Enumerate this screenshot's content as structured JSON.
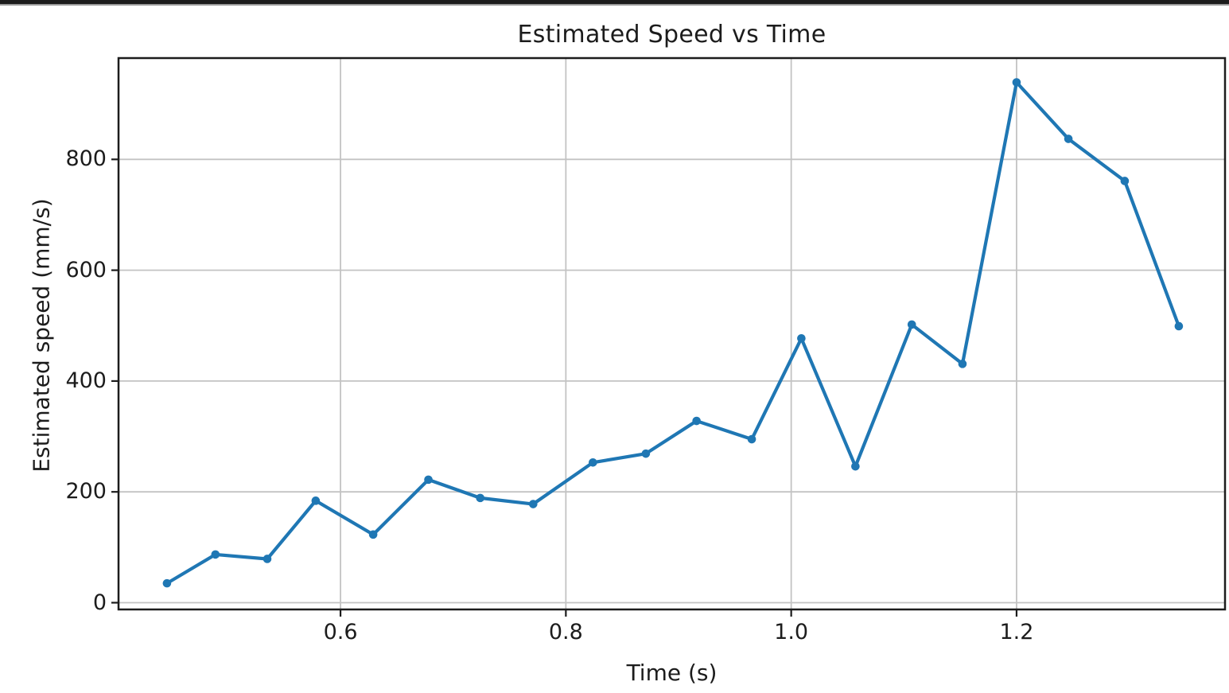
{
  "page": {
    "background_color": "#ffffff",
    "top_bar_color": "#1c1c1c"
  },
  "chart_data": {
    "type": "line",
    "title": "Estimated Speed vs Time",
    "xlabel": "Time (s)",
    "ylabel": "Estimated speed (mm/s)",
    "series": [
      {
        "name": "Estimated speed",
        "x": [
          0.446,
          0.489,
          0.535,
          0.578,
          0.629,
          0.678,
          0.724,
          0.771,
          0.824,
          0.871,
          0.916,
          0.965,
          1.009,
          1.057,
          1.107,
          1.152,
          1.2,
          1.246,
          1.296,
          1.344
        ],
        "y": [
          35,
          87,
          79,
          184,
          123,
          222,
          189,
          178,
          253,
          269,
          328,
          295,
          477,
          246,
          502,
          431,
          939,
          837,
          761,
          499
        ]
      }
    ],
    "line_color": "#1f77b4",
    "marker": "circle",
    "marker_color": "#1f77b4",
    "xlim": [
      0.403,
      1.385
    ],
    "ylim": [
      -12.2,
      982.8
    ],
    "xticks": {
      "values": [
        0.6,
        0.8,
        1.0,
        1.2
      ],
      "labels": [
        "0.6",
        "0.8",
        "1.0",
        "1.2"
      ]
    },
    "yticks": {
      "values": [
        0,
        200,
        400,
        600,
        800
      ],
      "labels": [
        "0",
        "200",
        "400",
        "600",
        "800"
      ]
    },
    "grid": true,
    "grid_color": "#c3c3c3",
    "spine_color": "#1c1c1c",
    "legend": "none"
  }
}
